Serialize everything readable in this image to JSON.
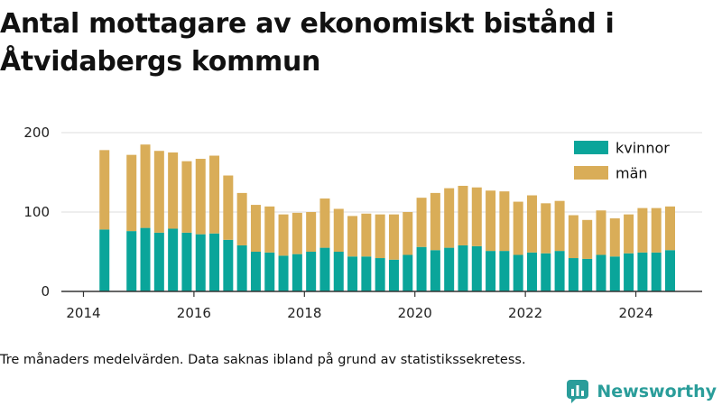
{
  "title": "Antal mottagare av ekonomiskt bistånd i Åtvidabergs kommun",
  "caption": "Tre månaders medelvärden. Data saknas ibland på grund av statistikssekretess.",
  "brand": "Newsworthy",
  "colors": {
    "kvinnor": "#0aa59a",
    "man": "#d9ad58",
    "axis": "#333333",
    "grid": "#dddddd",
    "brand": "#2a9d9a"
  },
  "chart_data": {
    "type": "bar",
    "stacked": true,
    "x_unit": "year",
    "xlim": [
      2013.6,
      2025.2
    ],
    "ylim": [
      0,
      200
    ],
    "yticks": [
      0,
      100,
      200
    ],
    "xticks": [
      2014,
      2016,
      2018,
      2020,
      2022,
      2024
    ],
    "grid": true,
    "legend_position": "top-right",
    "x": [
      2014.38,
      2014.87,
      2015.12,
      2015.37,
      2015.62,
      2015.87,
      2016.12,
      2016.37,
      2016.62,
      2016.87,
      2017.12,
      2017.37,
      2017.62,
      2017.87,
      2018.12,
      2018.37,
      2018.62,
      2018.87,
      2019.12,
      2019.37,
      2019.62,
      2019.87,
      2020.12,
      2020.37,
      2020.62,
      2020.87,
      2021.12,
      2021.37,
      2021.62,
      2021.87,
      2022.12,
      2022.37,
      2022.62,
      2022.87,
      2023.12,
      2023.37,
      2023.62,
      2023.87,
      2024.12,
      2024.37,
      2024.62
    ],
    "series": [
      {
        "name": "kvinnor",
        "values": [
          78,
          76,
          80,
          74,
          79,
          74,
          72,
          73,
          65,
          58,
          50,
          49,
          45,
          47,
          50,
          55,
          50,
          44,
          44,
          42,
          40,
          46,
          56,
          52,
          55,
          58,
          57,
          51,
          51,
          46,
          49,
          48,
          51,
          42,
          41,
          46,
          44,
          48,
          49,
          49,
          52
        ]
      },
      {
        "name": "män",
        "values": [
          100,
          96,
          105,
          103,
          96,
          90,
          95,
          98,
          81,
          66,
          59,
          58,
          52,
          52,
          50,
          62,
          54,
          51,
          54,
          55,
          57,
          54,
          62,
          72,
          75,
          75,
          74,
          76,
          75,
          67,
          72,
          63,
          63,
          54,
          49,
          56,
          48,
          49,
          56,
          56,
          55
        ]
      }
    ]
  }
}
